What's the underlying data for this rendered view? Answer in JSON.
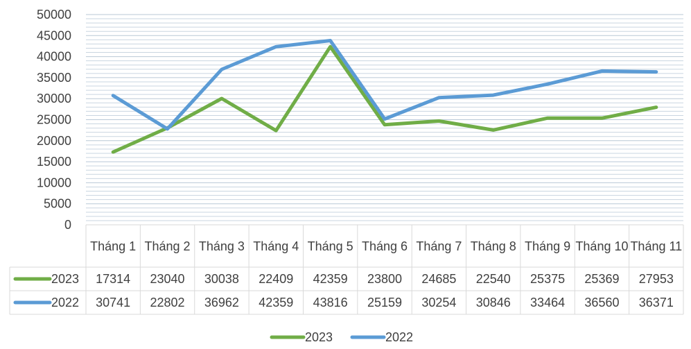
{
  "chart_data": {
    "type": "line",
    "categories": [
      "Tháng 1",
      "Tháng 2",
      "Tháng 3",
      "Tháng 4",
      "Tháng 5",
      "Tháng 6",
      "Tháng 7",
      "Tháng 8",
      "Tháng 9",
      "Tháng 10",
      "Tháng 11"
    ],
    "series": [
      {
        "name": "2023",
        "color": "#70AD47",
        "values": [
          17314,
          23040,
          30038,
          22409,
          42359,
          23800,
          24685,
          22540,
          25375,
          25369,
          27953
        ]
      },
      {
        "name": "2022",
        "color": "#5B9BD5",
        "values": [
          30741,
          22802,
          36962,
          42359,
          43816,
          25159,
          30254,
          30846,
          33464,
          36560,
          36371
        ]
      }
    ],
    "ylim": [
      0,
      50000
    ],
    "yticks": [
      0,
      5000,
      10000,
      15000,
      20000,
      25000,
      30000,
      35000,
      40000,
      45000,
      50000
    ],
    "grid": true,
    "data_table": true,
    "legend_position": "bottom"
  }
}
